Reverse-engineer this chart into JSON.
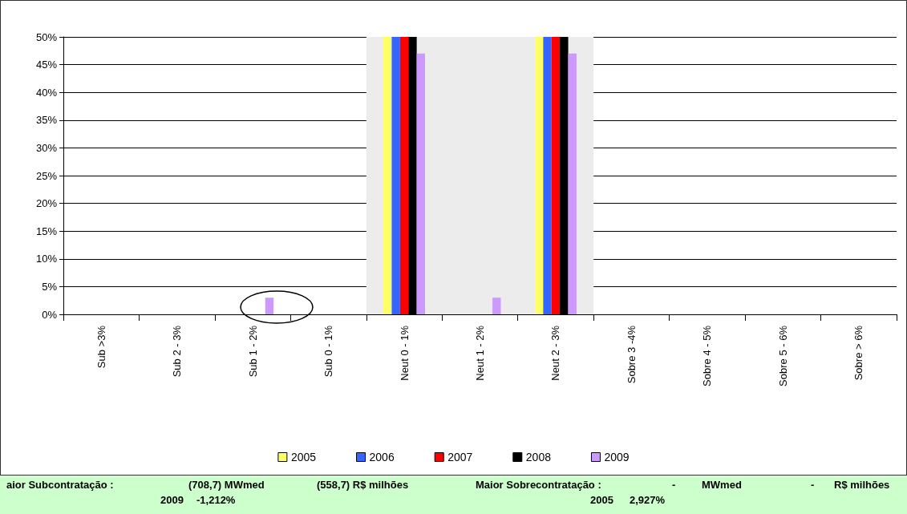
{
  "chart_data": {
    "type": "bar",
    "categories": [
      "Sub >3%",
      "Sub 2 - 3%",
      "Sub 1 - 2%",
      "Sub 0 - 1%",
      "Neut 0 - 1%",
      "Neut 1 - 2%",
      "Neut 2 - 3%",
      "Sobre 3 -4%",
      "Sobre 4 - 5%",
      "Sobre 5 - 6%",
      "Sobre > 6%"
    ],
    "series": [
      {
        "name": "2005",
        "color": "#ffff66",
        "values": [
          0,
          0,
          0,
          0,
          50,
          0,
          50,
          0,
          0,
          0,
          0
        ]
      },
      {
        "name": "2006",
        "color": "#3366ff",
        "values": [
          0,
          0,
          0,
          0,
          50,
          0,
          50,
          0,
          0,
          0,
          0
        ]
      },
      {
        "name": "2007",
        "color": "#ff0000",
        "values": [
          0,
          0,
          0,
          0,
          50,
          0,
          50,
          0,
          0,
          0,
          0
        ]
      },
      {
        "name": "2008",
        "color": "#000000",
        "values": [
          0,
          0,
          0,
          0,
          50,
          0,
          50,
          0,
          0,
          0,
          0
        ]
      },
      {
        "name": "2009",
        "color": "#cc99ff",
        "values": [
          0,
          0,
          3,
          0,
          47,
          3,
          47,
          0,
          0,
          0,
          0
        ]
      }
    ],
    "ylim": [
      0,
      50
    ],
    "yticks": [
      {
        "value": 0,
        "label": "0%"
      },
      {
        "value": 5,
        "label": "5%"
      },
      {
        "value": 10,
        "label": "10%"
      },
      {
        "value": 15,
        "label": "15%"
      },
      {
        "value": 20,
        "label": "20%"
      },
      {
        "value": 25,
        "label": "25%"
      },
      {
        "value": 30,
        "label": "30%"
      },
      {
        "value": 35,
        "label": "35%"
      },
      {
        "value": 40,
        "label": "40%"
      },
      {
        "value": 45,
        "label": "45%"
      },
      {
        "value": 50,
        "label": "50%"
      }
    ],
    "bands": [
      {
        "axis": "x",
        "from": "Neut 0 - 1%",
        "to": "Neut 2 - 3%",
        "color": "#ececec"
      }
    ],
    "grid": "y",
    "legend": "bottom",
    "annotations": [
      "aior Subcontratação :",
      "(708,7) MWmed",
      "(558,7) R$ milhões",
      "Maior Sobrecontratação :",
      "-",
      "MWmed",
      "-",
      "R$ milhões",
      "2009",
      "-1,212%",
      "2005",
      "2,927%"
    ]
  }
}
